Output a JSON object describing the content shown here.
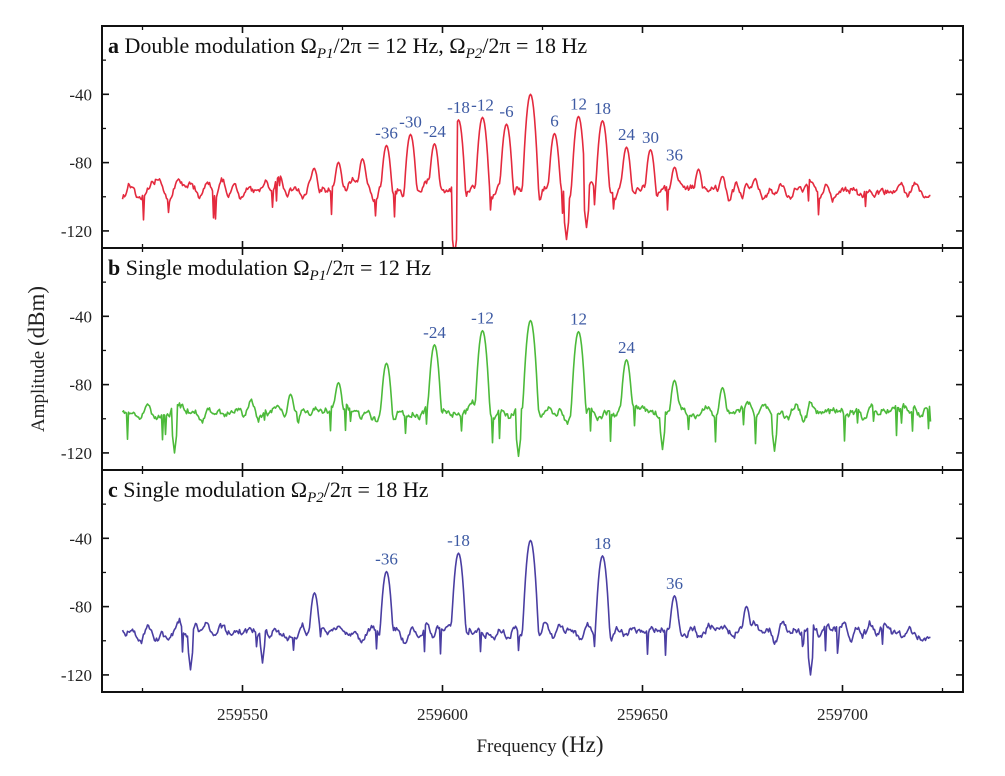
{
  "chart_data": [
    {
      "type": "line",
      "panel_letter": "a",
      "title_parts": [
        "Double modulation Ω",
        "P1",
        "/2π = 12 Hz, Ω",
        "P2",
        "/2π = 18 Hz"
      ],
      "color": "#e42a3e",
      "noise_floor_dBm": -96,
      "x_range": [
        259520,
        259722
      ],
      "ylim": [
        -130,
        0
      ],
      "peaks": [
        {
          "x": 259622,
          "y": -40
        },
        {
          "x": 259616,
          "y": -57.5
        },
        {
          "x": 259628,
          "y": -63
        },
        {
          "x": 259610,
          "y": -53.5
        },
        {
          "x": 259634,
          "y": -53
        },
        {
          "x": 259604,
          "y": -55
        },
        {
          "x": 259640,
          "y": -55.5
        },
        {
          "x": 259598,
          "y": -69
        },
        {
          "x": 259646,
          "y": -71
        },
        {
          "x": 259592,
          "y": -63.5
        },
        {
          "x": 259652,
          "y": -72.5
        },
        {
          "x": 259586,
          "y": -70
        },
        {
          "x": 259658,
          "y": -83
        },
        {
          "x": 259580,
          "y": -78
        },
        {
          "x": 259664,
          "y": -84
        },
        {
          "x": 259574,
          "y": -80
        },
        {
          "x": 259670,
          "y": -89
        },
        {
          "x": 259568,
          "y": -84
        },
        {
          "x": 259676,
          "y": -93
        }
      ],
      "dips": [
        {
          "x": 259603,
          "y": -135
        },
        {
          "x": 259631,
          "y": -125
        },
        {
          "x": 259636,
          "y": -118
        }
      ],
      "annotations": [
        {
          "text": "-36",
          "x": 259586,
          "y": -70
        },
        {
          "text": "-30",
          "x": 259592,
          "y": -63.5
        },
        {
          "text": "-24",
          "x": 259598,
          "y": -69
        },
        {
          "text": "-18",
          "x": 259604,
          "y": -55
        },
        {
          "text": "-12",
          "x": 259610,
          "y": -53.5
        },
        {
          "text": "-6",
          "x": 259616,
          "y": -57.5
        },
        {
          "text": "6",
          "x": 259628,
          "y": -63
        },
        {
          "text": "12",
          "x": 259634,
          "y": -53
        },
        {
          "text": "18",
          "x": 259640,
          "y": -55.5
        },
        {
          "text": "24",
          "x": 259646,
          "y": -71
        },
        {
          "text": "30",
          "x": 259652,
          "y": -72.5
        },
        {
          "text": "36",
          "x": 259658,
          "y": -83
        }
      ]
    },
    {
      "type": "line",
      "panel_letter": "b",
      "title_parts": [
        "Single modulation Ω",
        "P1",
        "/2π = 12 Hz"
      ],
      "color": "#4cba3a",
      "noise_floor_dBm": -96,
      "x_range": [
        259520,
        259722
      ],
      "ylim": [
        -130,
        0
      ],
      "peaks": [
        {
          "x": 259622,
          "y": -42.5
        },
        {
          "x": 259610,
          "y": -48.4
        },
        {
          "x": 259634,
          "y": -49
        },
        {
          "x": 259598,
          "y": -56.7
        },
        {
          "x": 259646,
          "y": -65.5
        },
        {
          "x": 259586,
          "y": -67.5
        },
        {
          "x": 259658,
          "y": -77.6
        },
        {
          "x": 259574,
          "y": -79
        },
        {
          "x": 259670,
          "y": -82
        },
        {
          "x": 259562,
          "y": -86
        }
      ],
      "dips": [
        {
          "x": 259619,
          "y": -122
        },
        {
          "x": 259533,
          "y": -120
        },
        {
          "x": 259655,
          "y": -118
        },
        {
          "x": 259683,
          "y": -119
        }
      ],
      "annotations": [
        {
          "text": "-24",
          "x": 259598,
          "y": -56.7
        },
        {
          "text": "-12",
          "x": 259610,
          "y": -48.4
        },
        {
          "text": "12",
          "x": 259634,
          "y": -49
        },
        {
          "text": "24",
          "x": 259646,
          "y": -65.5
        }
      ]
    },
    {
      "type": "line",
      "panel_letter": "c",
      "title_parts": [
        "Single modulation Ω",
        "P2",
        "/2π = 18 Hz"
      ],
      "color": "#4a3ea2",
      "noise_floor_dBm": -95,
      "x_range": [
        259520,
        259722
      ],
      "ylim": [
        -130,
        0
      ],
      "peaks": [
        {
          "x": 259622,
          "y": -41.3
        },
        {
          "x": 259604,
          "y": -48.7
        },
        {
          "x": 259640,
          "y": -50.3
        },
        {
          "x": 259586,
          "y": -59.5
        },
        {
          "x": 259658,
          "y": -73.7
        },
        {
          "x": 259568,
          "y": -72
        },
        {
          "x": 259676,
          "y": -80
        }
      ],
      "dips": [
        {
          "x": 259692,
          "y": -120
        },
        {
          "x": 259537,
          "y": -117
        },
        {
          "x": 259555,
          "y": -113
        }
      ],
      "annotations": [
        {
          "text": "-36",
          "x": 259586,
          "y": -59.5
        },
        {
          "text": "-18",
          "x": 259604,
          "y": -48.7
        },
        {
          "text": "18",
          "x": 259640,
          "y": -50.3
        },
        {
          "text": "36",
          "x": 259658,
          "y": -73.7
        }
      ]
    }
  ],
  "axes": {
    "xlabel": "Frequency",
    "xlabel_unit": "(Hz)",
    "ylabel": "Amplitude",
    "ylabel_unit": "(dBm)",
    "x_ticks": [
      "259550",
      "259600",
      "259650",
      "259700"
    ],
    "x_tick_values": [
      259550,
      259600,
      259650,
      259700
    ],
    "x_minor_tick_values": [
      259525,
      259575,
      259625,
      259675,
      259725
    ],
    "y_ticks": [
      "-40",
      "-80",
      "-120"
    ],
    "y_tick_values": [
      -40,
      -80,
      -120
    ],
    "y_minor_tick_values": [
      -20,
      -60,
      -100
    ],
    "annotation_color": "#3d5aa3",
    "grid": false
  }
}
